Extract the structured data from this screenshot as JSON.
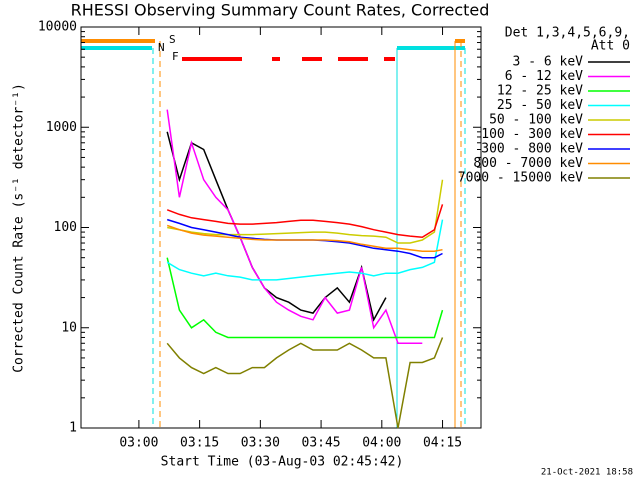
{
  "chart_data": {
    "type": "line",
    "title": "RHESSI Observing Summary Count Rates, Corrected",
    "x_label": "Start Time (03-Aug-03 02:45:42)",
    "y_label": "Corrected Count Rate (s⁻¹ detector⁻¹)",
    "legend_title": [
      "Det 1,3,4,5,6,9,",
      "Att 0"
    ],
    "footer": "21-Oct-2021 18:58",
    "flags": [
      {
        "label": "S",
        "color": "#ff8c00"
      },
      {
        "label": "N",
        "color": "#00e0e0"
      },
      {
        "label": "F",
        "color": "#ff0000"
      }
    ],
    "log_y": true,
    "xlim": [
      165.7,
      264.5
    ],
    "xticks": [
      {
        "value": 180,
        "label": "03:00"
      },
      {
        "value": 195,
        "label": "03:15"
      },
      {
        "value": 210,
        "label": "03:30"
      },
      {
        "value": 225,
        "label": "03:45"
      },
      {
        "value": 240,
        "label": "04:00"
      },
      {
        "value": 255,
        "label": "04:15"
      }
    ],
    "ylim": [
      1,
      10000
    ],
    "yticks": [
      1,
      10,
      100,
      1000,
      10000
    ],
    "x": [
      187,
      190,
      193,
      196,
      199,
      202,
      205,
      208,
      211,
      214,
      217,
      220,
      223,
      226,
      229,
      232,
      235,
      238,
      241,
      244,
      247,
      250,
      253,
      255
    ],
    "series": [
      {
        "name": "3 - 6 keV",
        "color": "#000000",
        "values": [
          900,
          300,
          700,
          600,
          300,
          150,
          80,
          40,
          25,
          20,
          18,
          15,
          14,
          20,
          25,
          18,
          40,
          12,
          20,
          null,
          null,
          null,
          null,
          null
        ]
      },
      {
        "name": "6 - 12 keV",
        "color": "#ff00ff",
        "values": [
          1500,
          200,
          700,
          300,
          200,
          150,
          80,
          40,
          25,
          18,
          15,
          13,
          12,
          20,
          14,
          15,
          40,
          10,
          15,
          7,
          7,
          7,
          null,
          null
        ]
      },
      {
        "name": "12 - 25 keV",
        "color": "#00ff00",
        "values": [
          50,
          15,
          10,
          12,
          9,
          8,
          8,
          8,
          8,
          8,
          8,
          8,
          8,
          8,
          8,
          8,
          8,
          8,
          8,
          8,
          8,
          8,
          8,
          15
        ]
      },
      {
        "name": "25 - 50 keV",
        "color": "#00ffff",
        "values": [
          45,
          38,
          35,
          33,
          35,
          33,
          32,
          30,
          30,
          30,
          31,
          32,
          33,
          34,
          35,
          36,
          35,
          33,
          35,
          35,
          38,
          40,
          45,
          120
        ]
      },
      {
        "name": "50 - 100 keV",
        "color": "#cccc00",
        "values": [
          100,
          95,
          90,
          87,
          85,
          85,
          85,
          85,
          86,
          87,
          88,
          89,
          90,
          90,
          88,
          85,
          83,
          82,
          80,
          70,
          70,
          75,
          90,
          300
        ]
      },
      {
        "name": "100 - 300 keV",
        "color": "#ff0000",
        "values": [
          150,
          135,
          125,
          120,
          115,
          110,
          108,
          108,
          110,
          112,
          115,
          118,
          118,
          115,
          112,
          108,
          102,
          95,
          90,
          85,
          82,
          80,
          95,
          170
        ]
      },
      {
        "name": "300 - 800 keV",
        "color": "#0000ff",
        "values": [
          120,
          110,
          100,
          95,
          90,
          85,
          80,
          78,
          76,
          75,
          75,
          75,
          75,
          74,
          72,
          70,
          66,
          62,
          60,
          58,
          55,
          50,
          50,
          55
        ]
      },
      {
        "name": "800 - 7000 keV",
        "color": "#ff8c00",
        "values": [
          105,
          95,
          88,
          84,
          82,
          80,
          78,
          76,
          75,
          75,
          75,
          75,
          75,
          75,
          74,
          72,
          68,
          65,
          62,
          62,
          60,
          58,
          58,
          60
        ]
      },
      {
        "name": "7000 - 15000 keV",
        "color": "#808000",
        "values": [
          7,
          5,
          4,
          3.5,
          4,
          3.5,
          3.5,
          4,
          4,
          5,
          6,
          7,
          6,
          6,
          6,
          7,
          6,
          5,
          5,
          1,
          4.5,
          4.5,
          5,
          8
        ]
      }
    ]
  }
}
